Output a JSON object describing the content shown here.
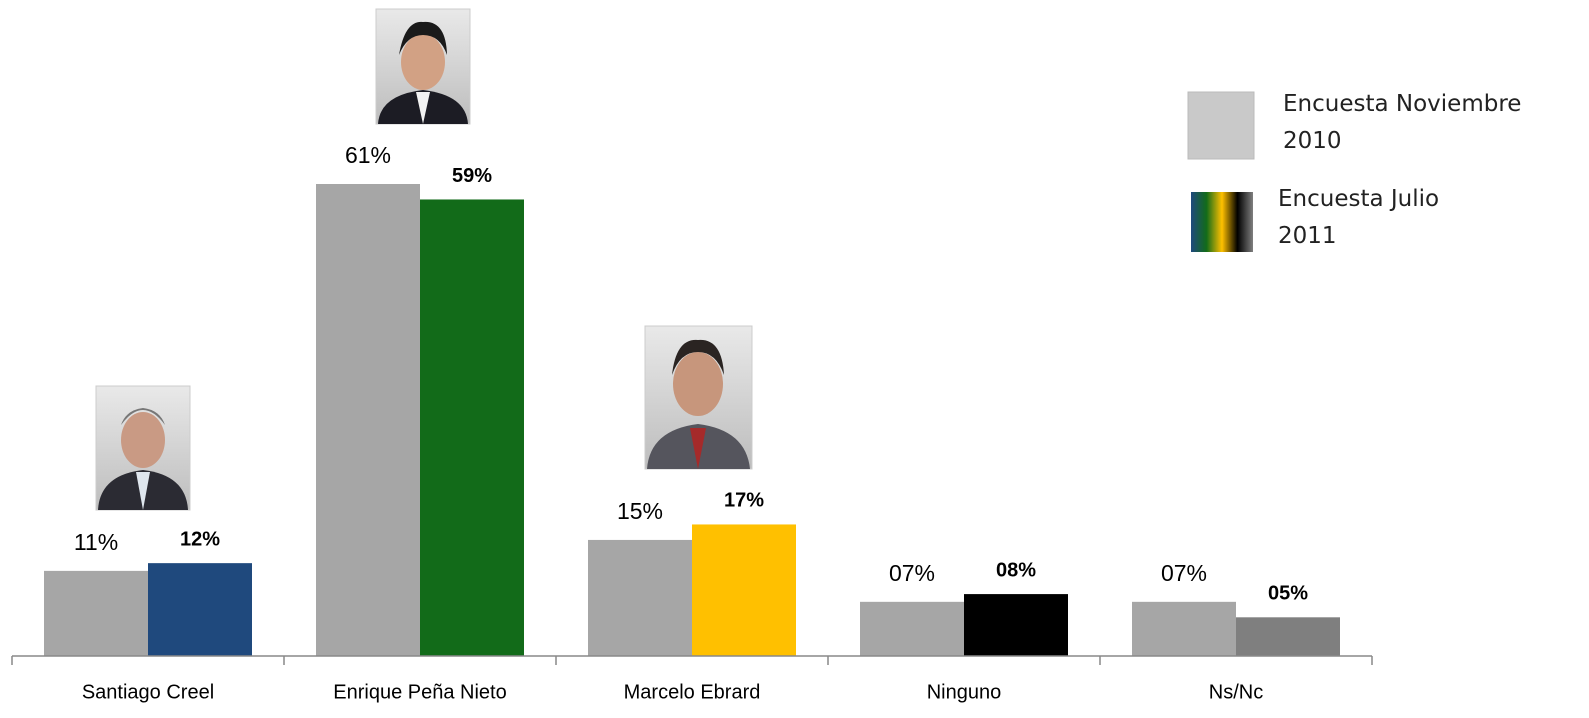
{
  "chart_data": {
    "type": "bar",
    "categories": [
      "Santiago Creel",
      "Enrique Peña Nieto",
      "Marcelo Ebrard",
      "Ninguno",
      "Ns/Nc"
    ],
    "series": [
      {
        "name": "Encuesta Noviembre 2010",
        "color": "#a6a6a6",
        "values": [
          11,
          61,
          15,
          7,
          7
        ],
        "value_labels": [
          "11%",
          "61%",
          "15%",
          "07%",
          "07%"
        ]
      },
      {
        "name": "Encuesta Julio 2011",
        "colors": [
          "#1f497d",
          "#126b19",
          "#ffc000",
          "#000000",
          "#7f7f7f"
        ],
        "values": [
          12,
          59,
          17,
          8,
          5
        ],
        "value_labels": [
          "12%",
          "59%",
          "17%",
          "08%",
          "05%"
        ]
      }
    ],
    "legend": "top-right"
  }
}
